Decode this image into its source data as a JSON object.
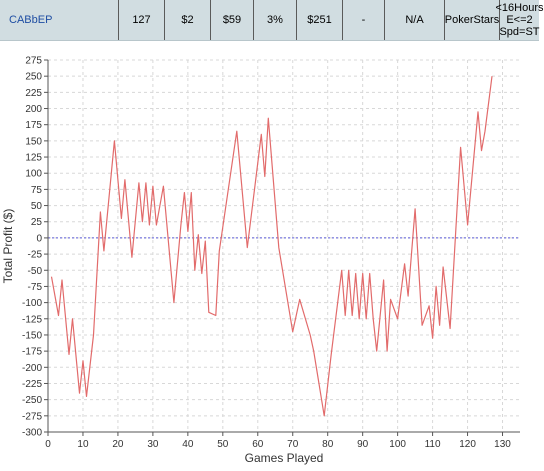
{
  "stats_row": {
    "cells": [
      "CABbEP",
      "127",
      "$2",
      "$59",
      "3%",
      "$251",
      "-",
      "N/A",
      "PokerStars",
      "<16Hours\nE<=2\nSpd=ST"
    ]
  },
  "colors": {
    "row_bg": "#d1dde1",
    "link": "#1f4ea3",
    "series": "#e26b6b",
    "zero_line": "#5a5ad6",
    "grid": "#d8d8d8"
  },
  "chart_data": {
    "type": "line",
    "xlabel": "Games Played",
    "ylabel": "Total Profit ($)",
    "xlim": [
      0,
      135
    ],
    "ylim": [
      -300,
      275
    ],
    "xticks": [
      0,
      10,
      20,
      30,
      40,
      50,
      60,
      70,
      80,
      90,
      100,
      110,
      120,
      130
    ],
    "yticks": [
      -300,
      -275,
      -250,
      -225,
      -200,
      -175,
      -150,
      -125,
      -100,
      -75,
      -50,
      -25,
      0,
      25,
      50,
      75,
      100,
      125,
      150,
      175,
      200,
      225,
      250,
      275
    ],
    "grid": true,
    "zero_line": true,
    "series": [
      {
        "x": [
          1,
          3,
          4,
          6,
          7,
          9,
          10,
          11,
          13,
          15,
          16,
          19,
          21,
          22,
          24,
          26,
          27,
          28,
          29,
          30,
          31,
          33,
          36,
          38,
          39,
          40,
          41,
          42,
          43,
          44,
          45,
          46,
          48,
          49,
          54,
          57,
          61,
          62,
          63,
          66,
          70,
          72,
          75,
          76,
          79,
          81,
          84,
          85,
          86,
          87,
          88,
          89,
          90,
          91,
          92,
          93,
          94,
          96,
          97,
          98,
          100,
          102,
          103,
          105,
          107,
          109,
          110,
          111,
          112,
          113,
          115,
          118,
          120,
          123,
          124,
          125,
          127
        ],
        "y": [
          -60,
          -120,
          -65,
          -180,
          -125,
          -240,
          -190,
          -245,
          -150,
          40,
          -20,
          150,
          30,
          90,
          -30,
          85,
          25,
          85,
          20,
          80,
          20,
          80,
          -100,
          20,
          70,
          10,
          70,
          -50,
          5,
          -55,
          -5,
          -115,
          -120,
          -20,
          165,
          -15,
          160,
          95,
          185,
          -15,
          -145,
          -95,
          -150,
          -175,
          -275,
          -180,
          -50,
          -120,
          -50,
          -120,
          -55,
          -125,
          -55,
          -125,
          -55,
          -125,
          -175,
          -65,
          -175,
          -95,
          -125,
          -40,
          -90,
          45,
          -135,
          -105,
          -155,
          -75,
          -135,
          -45,
          -140,
          140,
          20,
          195,
          135,
          165,
          250
        ]
      }
    ]
  }
}
